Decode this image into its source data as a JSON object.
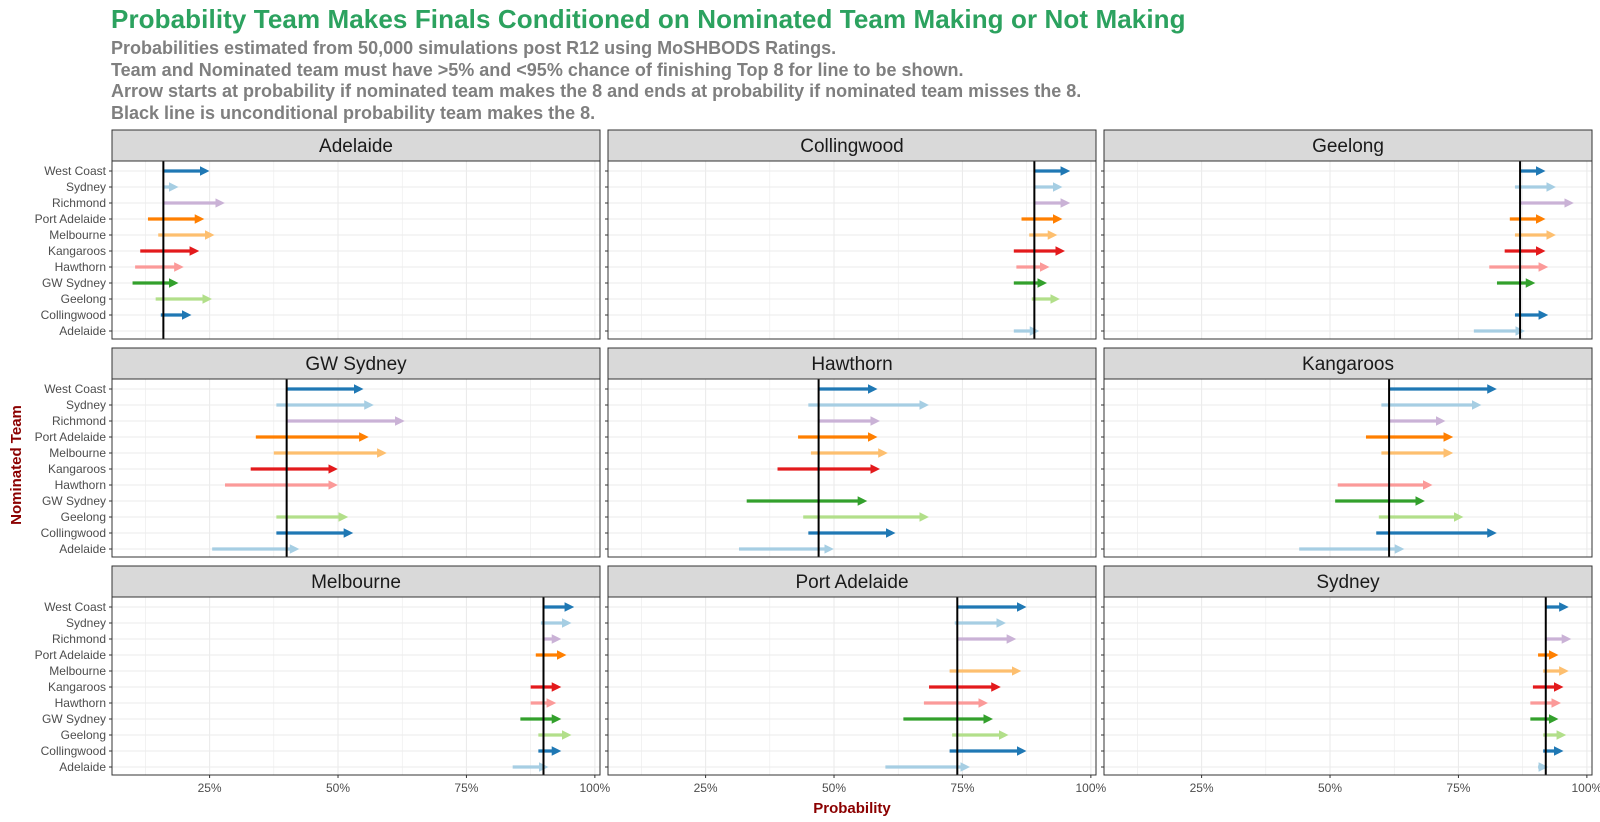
{
  "title": "Probability Team Makes Finals Conditioned on Nominated Team Making or Not Making",
  "subtitle_lines": [
    "Probabilities estimated from 50,000 simulations post R12 using MoSHBODS Ratings.",
    "Team and Nominated team must have >5% and <95% chance of finishing Top 8 for line to be shown.",
    "Arrow starts at probability if nominated team makes the 8 and ends at probability if nominated team misses the 8.",
    "Black line is unconditional probability team makes the 8."
  ],
  "colors": {
    "title": "#2ca25f",
    "subtitle": "#7f7f7f",
    "axis_title": "#8b0000",
    "strip_bg": "#d9d9d9",
    "grid": "#ebebeb",
    "unconditional_line": "#000000"
  },
  "chart_data": {
    "type": "arrow-dot",
    "facet_layout": "3x3",
    "xlabel": "Probability",
    "ylabel": "Nominated Team",
    "xlim": [
      0.06,
      1.01
    ],
    "x_ticks": [
      0.25,
      0.5,
      0.75,
      1.0
    ],
    "x_tick_labels": [
      "25%",
      "50%",
      "75%",
      "100%"
    ],
    "grid": true,
    "categories": [
      "West Coast",
      "Sydney",
      "Richmond",
      "Port Adelaide",
      "Melbourne",
      "Kangaroos",
      "Hawthorn",
      "GW Sydney",
      "Geelong",
      "Collingwood",
      "Adelaide"
    ],
    "category_colors": {
      "West Coast": "#1f78b4",
      "Sydney": "#a6cee3",
      "Richmond": "#cab2d6",
      "Port Adelaide": "#ff7f00",
      "Melbourne": "#fdbf6f",
      "Kangaroos": "#e31a1c",
      "Hawthorn": "#fb9a99",
      "GW Sydney": "#33a02c",
      "Geelong": "#b2df8a",
      "Collingwood": "#1f78b4",
      "Adelaide": "#a6cee3"
    },
    "facets": [
      {
        "team": "Adelaide",
        "unconditional": 0.16,
        "arrows": [
          {
            "nominated": "West Coast",
            "start": 0.16,
            "end": 0.25
          },
          {
            "nominated": "Sydney",
            "start": 0.16,
            "end": 0.19
          },
          {
            "nominated": "Richmond",
            "start": 0.16,
            "end": 0.28
          },
          {
            "nominated": "Port Adelaide",
            "start": 0.13,
            "end": 0.24
          },
          {
            "nominated": "Melbourne",
            "start": 0.15,
            "end": 0.26
          },
          {
            "nominated": "Kangaroos",
            "start": 0.115,
            "end": 0.23
          },
          {
            "nominated": "Hawthorn",
            "start": 0.105,
            "end": 0.2
          },
          {
            "nominated": "GW Sydney",
            "start": 0.1,
            "end": 0.19
          },
          {
            "nominated": "Geelong",
            "start": 0.145,
            "end": 0.255
          },
          {
            "nominated": "Collingwood",
            "start": 0.155,
            "end": 0.215
          }
        ]
      },
      {
        "team": "Collingwood",
        "unconditional": 0.89,
        "arrows": [
          {
            "nominated": "West Coast",
            "start": 0.89,
            "end": 0.96
          },
          {
            "nominated": "Sydney",
            "start": 0.89,
            "end": 0.945
          },
          {
            "nominated": "Richmond",
            "start": 0.89,
            "end": 0.96
          },
          {
            "nominated": "Port Adelaide",
            "start": 0.865,
            "end": 0.945
          },
          {
            "nominated": "Melbourne",
            "start": 0.88,
            "end": 0.935
          },
          {
            "nominated": "Kangaroos",
            "start": 0.85,
            "end": 0.95
          },
          {
            "nominated": "Hawthorn",
            "start": 0.855,
            "end": 0.92
          },
          {
            "nominated": "GW Sydney",
            "start": 0.85,
            "end": 0.915
          },
          {
            "nominated": "Geelong",
            "start": 0.885,
            "end": 0.94
          },
          {
            "nominated": "Adelaide",
            "start": 0.85,
            "end": 0.9
          }
        ]
      },
      {
        "team": "Geelong",
        "unconditional": 0.87,
        "arrows": [
          {
            "nominated": "West Coast",
            "start": 0.87,
            "end": 0.92
          },
          {
            "nominated": "Sydney",
            "start": 0.86,
            "end": 0.94
          },
          {
            "nominated": "Richmond",
            "start": 0.87,
            "end": 0.975
          },
          {
            "nominated": "Port Adelaide",
            "start": 0.85,
            "end": 0.92
          },
          {
            "nominated": "Melbourne",
            "start": 0.86,
            "end": 0.94
          },
          {
            "nominated": "Kangaroos",
            "start": 0.84,
            "end": 0.92
          },
          {
            "nominated": "Hawthorn",
            "start": 0.81,
            "end": 0.925
          },
          {
            "nominated": "GW Sydney",
            "start": 0.825,
            "end": 0.9
          },
          {
            "nominated": "Collingwood",
            "start": 0.86,
            "end": 0.925
          },
          {
            "nominated": "Adelaide",
            "start": 0.78,
            "end": 0.88
          }
        ]
      },
      {
        "team": "GW Sydney",
        "unconditional": 0.4,
        "arrows": [
          {
            "nominated": "West Coast",
            "start": 0.4,
            "end": 0.55
          },
          {
            "nominated": "Sydney",
            "start": 0.38,
            "end": 0.57
          },
          {
            "nominated": "Richmond",
            "start": 0.4,
            "end": 0.63
          },
          {
            "nominated": "Port Adelaide",
            "start": 0.34,
            "end": 0.56
          },
          {
            "nominated": "Melbourne",
            "start": 0.375,
            "end": 0.595
          },
          {
            "nominated": "Kangaroos",
            "start": 0.33,
            "end": 0.5
          },
          {
            "nominated": "Hawthorn",
            "start": 0.28,
            "end": 0.5
          },
          {
            "nominated": "Geelong",
            "start": 0.38,
            "end": 0.52
          },
          {
            "nominated": "Collingwood",
            "start": 0.38,
            "end": 0.53
          },
          {
            "nominated": "Adelaide",
            "start": 0.255,
            "end": 0.425
          }
        ]
      },
      {
        "team": "Hawthorn",
        "unconditional": 0.47,
        "arrows": [
          {
            "nominated": "West Coast",
            "start": 0.47,
            "end": 0.585
          },
          {
            "nominated": "Sydney",
            "start": 0.45,
            "end": 0.685
          },
          {
            "nominated": "Richmond",
            "start": 0.47,
            "end": 0.59
          },
          {
            "nominated": "Port Adelaide",
            "start": 0.43,
            "end": 0.585
          },
          {
            "nominated": "Melbourne",
            "start": 0.455,
            "end": 0.605
          },
          {
            "nominated": "Kangaroos",
            "start": 0.39,
            "end": 0.59
          },
          {
            "nominated": "GW Sydney",
            "start": 0.33,
            "end": 0.565
          },
          {
            "nominated": "Geelong",
            "start": 0.44,
            "end": 0.685
          },
          {
            "nominated": "Collingwood",
            "start": 0.45,
            "end": 0.62
          },
          {
            "nominated": "Adelaide",
            "start": 0.315,
            "end": 0.5
          }
        ]
      },
      {
        "team": "Kangaroos",
        "unconditional": 0.615,
        "arrows": [
          {
            "nominated": "West Coast",
            "start": 0.615,
            "end": 0.825
          },
          {
            "nominated": "Sydney",
            "start": 0.6,
            "end": 0.795
          },
          {
            "nominated": "Richmond",
            "start": 0.615,
            "end": 0.725
          },
          {
            "nominated": "Port Adelaide",
            "start": 0.57,
            "end": 0.74
          },
          {
            "nominated": "Melbourne",
            "start": 0.6,
            "end": 0.74
          },
          {
            "nominated": "Hawthorn",
            "start": 0.515,
            "end": 0.7
          },
          {
            "nominated": "GW Sydney",
            "start": 0.51,
            "end": 0.685
          },
          {
            "nominated": "Geelong",
            "start": 0.595,
            "end": 0.76
          },
          {
            "nominated": "Collingwood",
            "start": 0.59,
            "end": 0.825
          },
          {
            "nominated": "Adelaide",
            "start": 0.44,
            "end": 0.645
          }
        ]
      },
      {
        "team": "Melbourne",
        "unconditional": 0.9,
        "arrows": [
          {
            "nominated": "West Coast",
            "start": 0.9,
            "end": 0.96
          },
          {
            "nominated": "Sydney",
            "start": 0.895,
            "end": 0.955
          },
          {
            "nominated": "Richmond",
            "start": 0.9,
            "end": 0.935
          },
          {
            "nominated": "Port Adelaide",
            "start": 0.885,
            "end": 0.945
          },
          {
            "nominated": "Kangaroos",
            "start": 0.875,
            "end": 0.935
          },
          {
            "nominated": "Hawthorn",
            "start": 0.875,
            "end": 0.925
          },
          {
            "nominated": "GW Sydney",
            "start": 0.855,
            "end": 0.935
          },
          {
            "nominated": "Geelong",
            "start": 0.89,
            "end": 0.955
          },
          {
            "nominated": "Collingwood",
            "start": 0.89,
            "end": 0.935
          },
          {
            "nominated": "Adelaide",
            "start": 0.84,
            "end": 0.91
          }
        ]
      },
      {
        "team": "Port Adelaide",
        "unconditional": 0.74,
        "arrows": [
          {
            "nominated": "West Coast",
            "start": 0.74,
            "end": 0.875
          },
          {
            "nominated": "Sydney",
            "start": 0.735,
            "end": 0.835
          },
          {
            "nominated": "Richmond",
            "start": 0.74,
            "end": 0.855
          },
          {
            "nominated": "Melbourne",
            "start": 0.725,
            "end": 0.865
          },
          {
            "nominated": "Kangaroos",
            "start": 0.685,
            "end": 0.825
          },
          {
            "nominated": "Hawthorn",
            "start": 0.675,
            "end": 0.8
          },
          {
            "nominated": "GW Sydney",
            "start": 0.635,
            "end": 0.81
          },
          {
            "nominated": "Geelong",
            "start": 0.73,
            "end": 0.84
          },
          {
            "nominated": "Collingwood",
            "start": 0.725,
            "end": 0.875
          },
          {
            "nominated": "Adelaide",
            "start": 0.6,
            "end": 0.765
          }
        ]
      },
      {
        "team": "Sydney",
        "unconditional": 0.92,
        "arrows": [
          {
            "nominated": "West Coast",
            "start": 0.92,
            "end": 0.965
          },
          {
            "nominated": "Richmond",
            "start": 0.92,
            "end": 0.97
          },
          {
            "nominated": "Port Adelaide",
            "start": 0.905,
            "end": 0.945
          },
          {
            "nominated": "Melbourne",
            "start": 0.915,
            "end": 0.965
          },
          {
            "nominated": "Kangaroos",
            "start": 0.895,
            "end": 0.955
          },
          {
            "nominated": "Hawthorn",
            "start": 0.89,
            "end": 0.95
          },
          {
            "nominated": "GW Sydney",
            "start": 0.89,
            "end": 0.945
          },
          {
            "nominated": "Geelong",
            "start": 0.915,
            "end": 0.96
          },
          {
            "nominated": "Collingwood",
            "start": 0.915,
            "end": 0.955
          },
          {
            "nominated": "Adelaide",
            "start": 0.905,
            "end": 0.925
          }
        ]
      }
    ]
  }
}
